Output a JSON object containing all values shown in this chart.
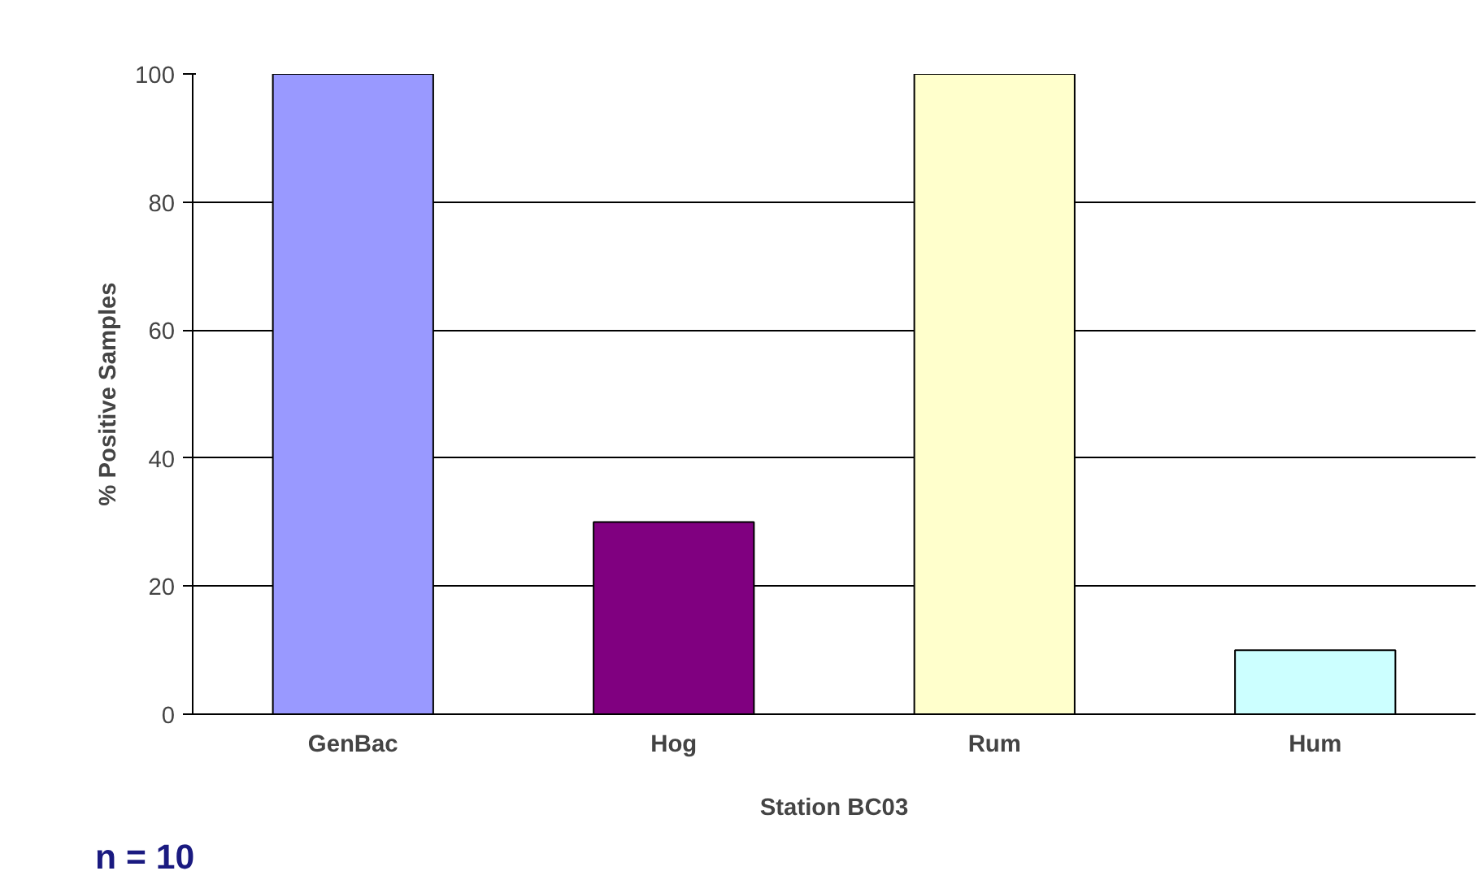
{
  "chart_data": {
    "type": "bar",
    "xlabel": "Station BC03",
    "ylabel": "% Positive Samples",
    "categories": [
      "GenBac",
      "Hog",
      "Rum",
      "Hum"
    ],
    "values": [
      100,
      30,
      100,
      10
    ],
    "colors": [
      "#9999ff",
      "#800080",
      "#ffffcc",
      "#ccffff"
    ],
    "ylim": [
      0,
      100
    ],
    "yticks": [
      0,
      20,
      40,
      60,
      80,
      100
    ],
    "grid": "y",
    "annotations": [
      "n = 10"
    ]
  }
}
